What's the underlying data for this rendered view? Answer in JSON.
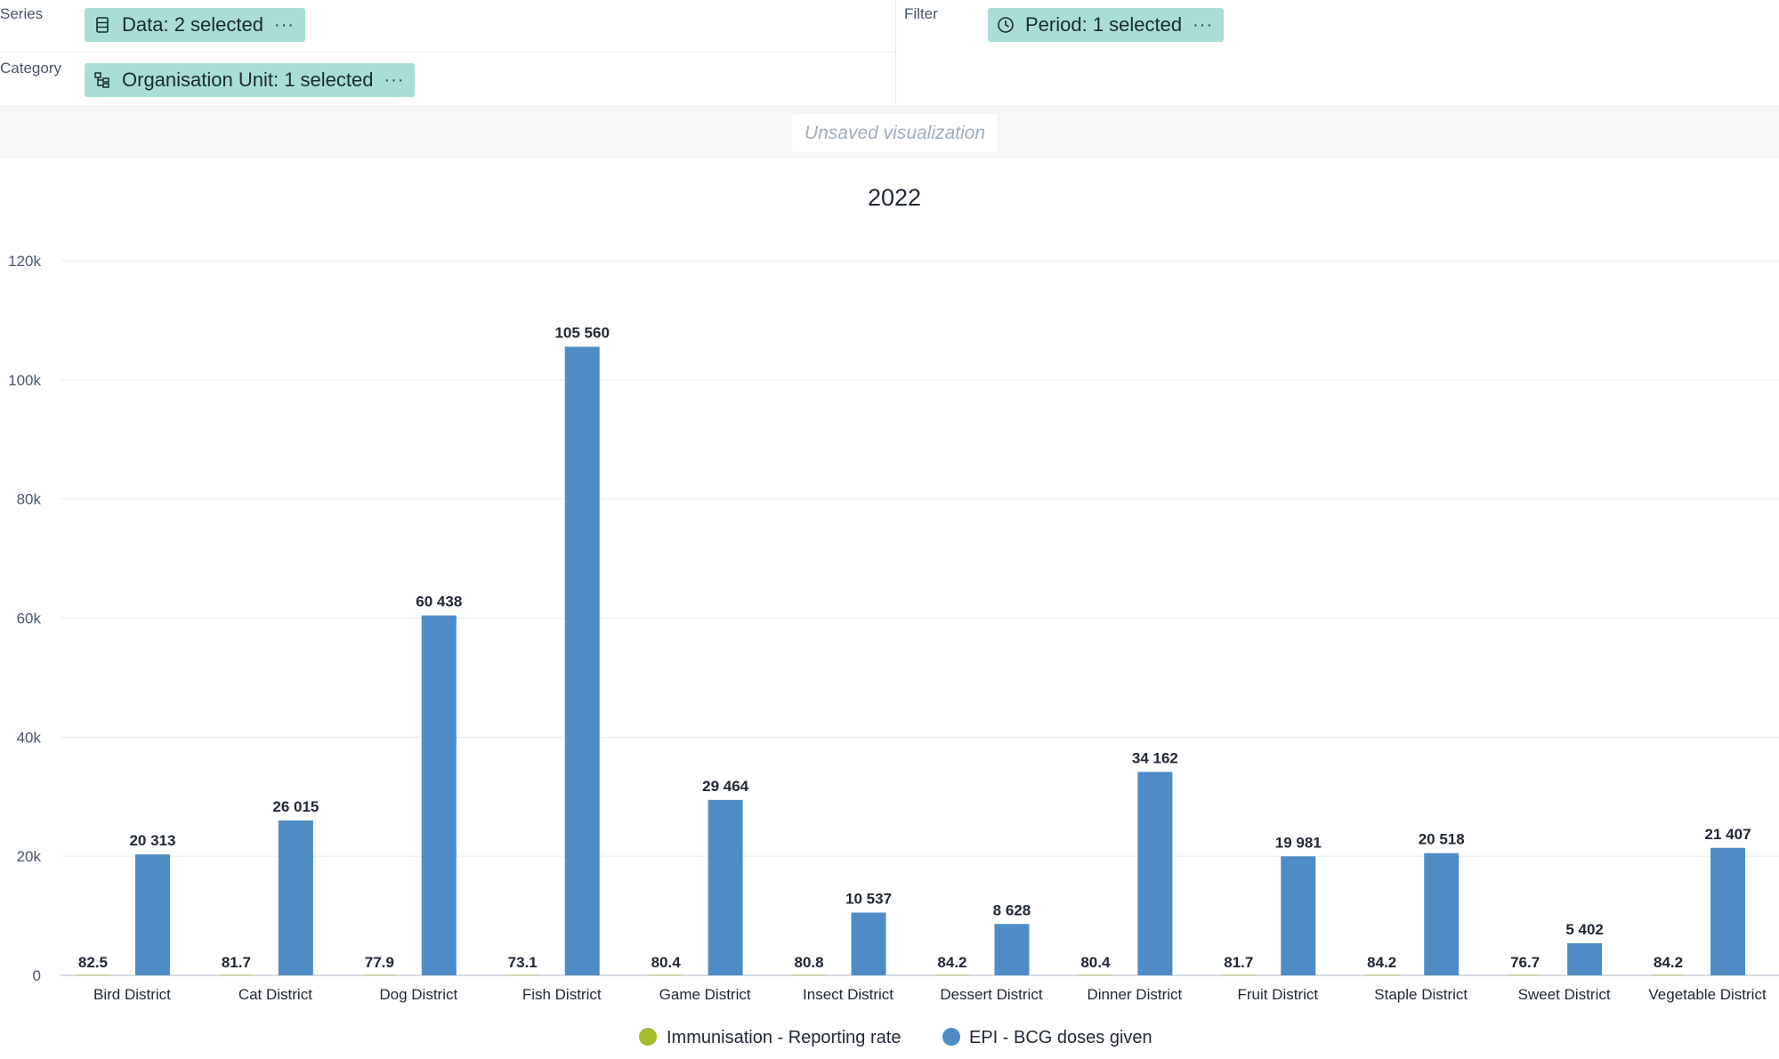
{
  "layout": {
    "series_label": "Series",
    "category_label": "Category",
    "filter_label": "Filter",
    "series_chip": "Data: 2 selected",
    "category_chip": "Organisation Unit: 1 selected",
    "filter_chip": "Period: 1 selected",
    "chip_more": "···"
  },
  "visualization": {
    "status": "Unsaved visualization"
  },
  "colors": {
    "reporting_rate": "#a3be2a",
    "bcg_doses": "#4f8cc5",
    "chip_bg": "#a8ded5"
  },
  "chart_data": {
    "type": "bar",
    "title": "2022",
    "categories": [
      "Bird District",
      "Cat District",
      "Dog District",
      "Fish District",
      "Game District",
      "Insect District",
      "Dessert District",
      "Dinner District",
      "Fruit District",
      "Staple District",
      "Sweet District",
      "Vegetable District"
    ],
    "series": [
      {
        "name": "Immunisation - Reporting rate",
        "color": "#a3be2a",
        "values": [
          82.5,
          81.7,
          77.9,
          73.1,
          80.4,
          80.8,
          84.2,
          80.4,
          81.7,
          84.2,
          76.7,
          84.2
        ],
        "labels": [
          "82.5",
          "81.7",
          "77.9",
          "73.1",
          "80.4",
          "80.8",
          "84.2",
          "80.4",
          "81.7",
          "84.2",
          "76.7",
          "84.2"
        ]
      },
      {
        "name": "EPI - BCG doses given",
        "color": "#4f8cc5",
        "values": [
          20313,
          26015,
          60438,
          105560,
          29464,
          10537,
          8628,
          34162,
          19981,
          20518,
          5402,
          21407
        ],
        "labels": [
          "20 313",
          "26 015",
          "60 438",
          "105 560",
          "29 464",
          "10 537",
          "8 628",
          "34 162",
          "19 981",
          "20 518",
          "5 402",
          "21 407"
        ]
      }
    ],
    "ylim": [
      0,
      120000
    ],
    "yticks": [
      0,
      20000,
      40000,
      60000,
      80000,
      100000,
      120000
    ],
    "ytick_labels": [
      "0",
      "20k",
      "40k",
      "60k",
      "80k",
      "100k",
      "120k"
    ],
    "grid": true,
    "legend": "bottom-center"
  }
}
